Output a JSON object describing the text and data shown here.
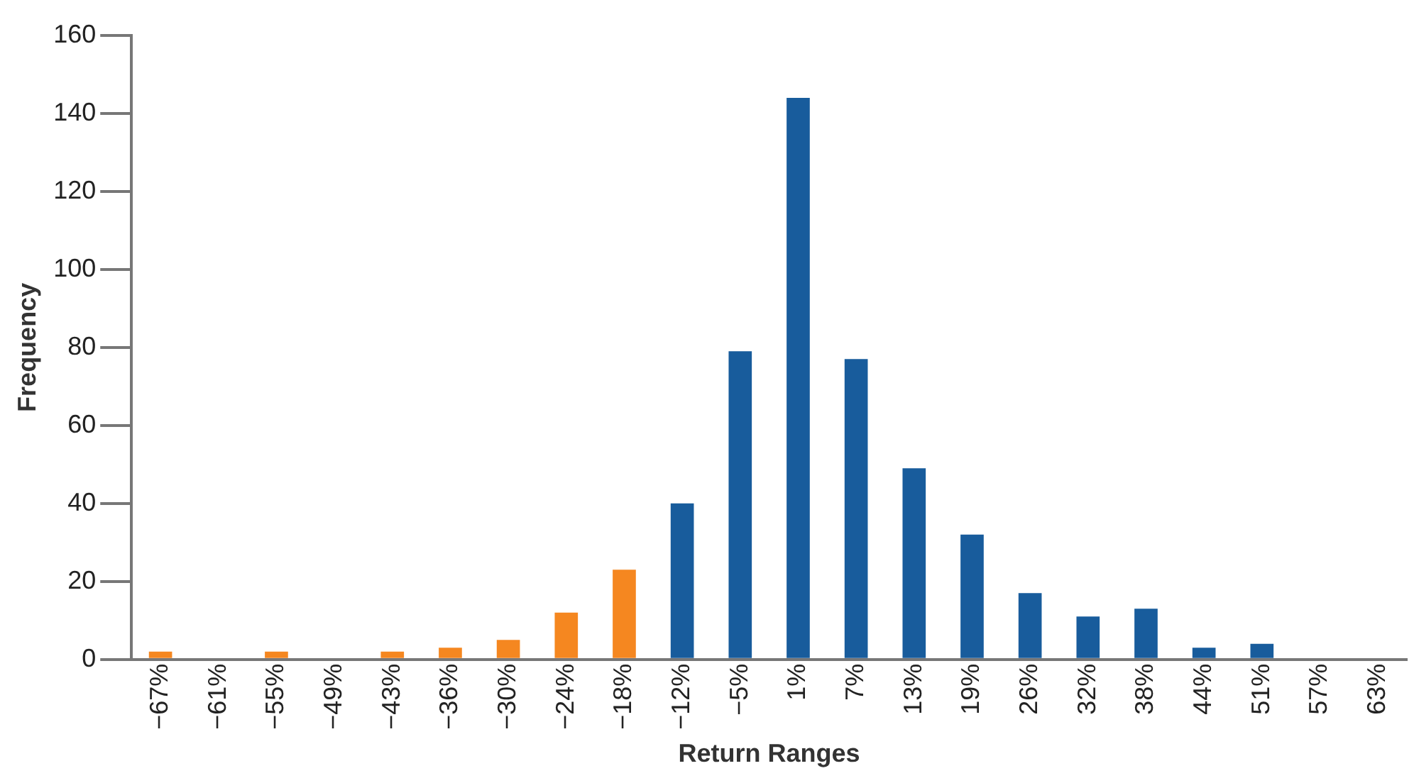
{
  "chart_data": {
    "type": "bar",
    "xlabel": "Return Ranges",
    "ylabel": "Frequency",
    "categories": [
      "−67%",
      "−61%",
      "−55%",
      "−49%",
      "−43%",
      "−36%",
      "−30%",
      "−24%",
      "−18%",
      "−12%",
      "−5%",
      "1%",
      "7%",
      "13%",
      "19%",
      "26%",
      "32%",
      "38%",
      "44%",
      "51%",
      "57%",
      "63%"
    ],
    "values": [
      2,
      0,
      2,
      0,
      2,
      3,
      5,
      12,
      23,
      40,
      79,
      144,
      77,
      49,
      32,
      17,
      11,
      13,
      3,
      4,
      0,
      0
    ],
    "colors": [
      "#f58720",
      "#f58720",
      "#f58720",
      "#f58720",
      "#f58720",
      "#f58720",
      "#f58720",
      "#f58720",
      "#f58720",
      "#185c9c",
      "#185c9c",
      "#185c9c",
      "#185c9c",
      "#185c9c",
      "#185c9c",
      "#185c9c",
      "#185c9c",
      "#185c9c",
      "#185c9c",
      "#185c9c",
      "#185c9c",
      "#185c9c"
    ],
    "ylim": [
      0,
      160
    ],
    "yticks": [
      0,
      20,
      40,
      60,
      80,
      100,
      120,
      140,
      160
    ],
    "grid": false,
    "legend": false
  }
}
